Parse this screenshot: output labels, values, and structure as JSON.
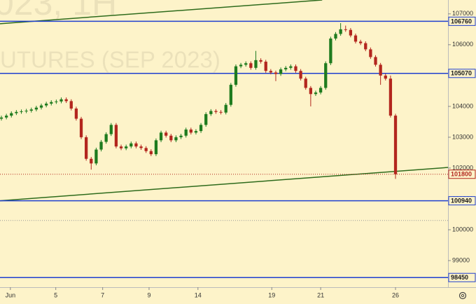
{
  "chart_data": {
    "type": "candlestick",
    "watermark": [
      "023, 1H",
      "UTURES (SEP 2023)"
    ],
    "open": [
      103600,
      103640,
      103700,
      103780,
      103820,
      103840,
      103860,
      103900,
      103960,
      104030,
      104090,
      104140,
      104160,
      104230,
      104170,
      103930,
      103600,
      103000,
      102300,
      102150,
      102600,
      102850,
      103100,
      103400,
      102700,
      102640,
      102700,
      102800,
      102700,
      102650,
      102550,
      102450,
      102900,
      103150,
      103050,
      102900,
      103000,
      103050,
      103250,
      103150,
      103200,
      103400,
      103750,
      103850,
      103820,
      103800,
      104050,
      104700,
      105300,
      105350,
      105400,
      105250,
      105500,
      105450,
      105150,
      105100,
      105050,
      105200,
      105250,
      105300,
      105150,
      104900,
      104600,
      104400,
      104450,
      104600,
      105400,
      106200,
      106350,
      106500,
      106480,
      106300,
      106100,
      106050,
      105850,
      105600,
      105350,
      105000,
      104900,
      103700
    ],
    "high": [
      103700,
      103760,
      103840,
      103880,
      103900,
      103920,
      103960,
      104020,
      104090,
      104150,
      104200,
      104220,
      104290,
      104290,
      104230,
      103990,
      103660,
      103060,
      102360,
      102660,
      102910,
      103160,
      103460,
      103460,
      102760,
      102760,
      102860,
      102860,
      102760,
      102710,
      102610,
      102960,
      103210,
      103210,
      103110,
      103060,
      103110,
      103310,
      103310,
      103260,
      103460,
      103810,
      103910,
      103910,
      103880,
      104110,
      104760,
      105360,
      105410,
      105460,
      105460,
      105800,
      105560,
      105510,
      105210,
      105160,
      105260,
      105310,
      105360,
      105360,
      105210,
      104960,
      104660,
      104510,
      104660,
      105460,
      106260,
      106410,
      106700,
      106620,
      106540,
      106360,
      106160,
      106110,
      105910,
      105660,
      105410,
      105060,
      105000,
      103760
    ],
    "low": [
      103540,
      103580,
      103640,
      103720,
      103760,
      103780,
      103800,
      103840,
      103900,
      103970,
      104030,
      104080,
      104100,
      104110,
      103870,
      103540,
      102940,
      102240,
      101950,
      102090,
      102540,
      102790,
      103040,
      102640,
      102580,
      102580,
      102640,
      102640,
      102590,
      102490,
      102390,
      102390,
      102840,
      102990,
      102840,
      102840,
      102940,
      102990,
      103090,
      103090,
      103140,
      103340,
      103690,
      103760,
      103740,
      103740,
      103990,
      104640,
      105240,
      105290,
      105190,
      105190,
      105390,
      105090,
      105040,
      104820,
      104990,
      105140,
      105190,
      105090,
      104840,
      104540,
      104000,
      104340,
      104390,
      104540,
      105340,
      106140,
      106290,
      106420,
      106240,
      106040,
      105990,
      105790,
      105540,
      105290,
      104700,
      104840,
      103640,
      101650
    ],
    "close": [
      103640,
      103700,
      103780,
      103820,
      103840,
      103860,
      103900,
      103960,
      104030,
      104090,
      104140,
      104160,
      104230,
      104170,
      103930,
      103600,
      103000,
      102300,
      102150,
      102600,
      102850,
      103100,
      103400,
      102700,
      102640,
      102700,
      102800,
      102700,
      102650,
      102550,
      102450,
      102900,
      103150,
      103050,
      102900,
      103000,
      103050,
      103250,
      103150,
      103200,
      103400,
      103750,
      103850,
      103820,
      103800,
      104050,
      104700,
      105300,
      105350,
      105400,
      105250,
      105500,
      105450,
      105150,
      105100,
      105050,
      105200,
      105250,
      105300,
      105150,
      104900,
      104600,
      104400,
      104450,
      104600,
      105400,
      106200,
      106350,
      106500,
      106480,
      106300,
      106100,
      106050,
      105850,
      105600,
      105350,
      105000,
      104900,
      103700,
      101800
    ],
    "up_color": "#1e7b1e",
    "down_color": "#b3261e",
    "xlim": [
      -0.28,
      89.52
    ],
    "xticks": [
      {
        "value": 1.8,
        "label": "Jun"
      },
      {
        "value": 10.9,
        "label": "5"
      },
      {
        "value": 20.3,
        "label": "7"
      },
      {
        "value": 29.6,
        "label": "9"
      },
      {
        "value": 39.4,
        "label": "14"
      },
      {
        "value": 54.2,
        "label": "19"
      },
      {
        "value": 64.0,
        "label": "21"
      },
      {
        "value": 79,
        "label": "26"
      }
    ],
    "ylim": [
      97910,
      107450
    ],
    "yticks": [
      99000,
      100000,
      101000,
      102000,
      103000,
      104000,
      105000,
      106000,
      107000
    ],
    "price_levels": [
      {
        "value": 106760,
        "color": "#1f3fd0"
      },
      {
        "value": 105070,
        "color": "#1f3fd0"
      },
      {
        "value": 100940,
        "color": "#1f3fd0"
      },
      {
        "value": 98450,
        "color": "#1f3fd0"
      }
    ],
    "guide_lines": [
      100300
    ],
    "trend_lines": [
      {
        "x": [
          -0.28,
          64.3
        ],
        "y": [
          106680,
          107450
        ],
        "color": "#2e6b1c"
      },
      {
        "x": [
          -0.28,
          89.52
        ],
        "y": [
          100940,
          102020
        ],
        "color": "#2e6b1c"
      }
    ]
  }
}
